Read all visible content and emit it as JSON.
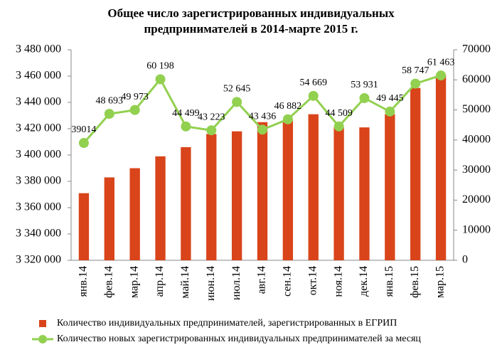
{
  "chart_data": {
    "type": "bar-line",
    "title": [
      "Общее число зарегистрированных индивидуальных",
      "предпринимателей в 2014-марте 2015 г."
    ],
    "categories": [
      "янв.14",
      "фев.14",
      "мар.14",
      "апр.14",
      "май.14",
      "июн.14",
      "июл.14",
      "авг.14",
      "сен.14",
      "окт.14",
      "ноя.14",
      "дек.14",
      "янв.15",
      "фев.15",
      "мар.15"
    ],
    "series": [
      {
        "name": "Количество индивидуальных предпринимателей, зарегистрированных в ЕГРИП",
        "type": "bar",
        "color": "#d9441a",
        "values": [
          3371000,
          3383000,
          3390000,
          3399000,
          3406000,
          3416000,
          3418000,
          3425000,
          3426000,
          3431000,
          3421000,
          3421000,
          3431000,
          3451000,
          3461000
        ]
      },
      {
        "name": "Количество новых зарегистрированных индивидуальных предпринимателей за месяц",
        "type": "line",
        "axis": "y2",
        "color": "#92d050",
        "values": [
          39014,
          48693,
          49973,
          60198,
          44499,
          43223,
          52645,
          43436,
          46882,
          54669,
          44509,
          53931,
          49445,
          58747,
          61463
        ],
        "value_labels": [
          "39014",
          "48 693",
          "49 973",
          "60 198",
          "44 499",
          "43 223",
          "52 645",
          "43 436",
          "46 882",
          "54 669",
          "44 509",
          "53 931",
          "49 445",
          "58 747",
          "61 463"
        ]
      }
    ],
    "ylim": [
      3320000,
      3480000
    ],
    "yticks": [
      {
        "value": 3320000,
        "label": "3 320 000"
      },
      {
        "value": 3340000,
        "label": "3 340 000"
      },
      {
        "value": 3360000,
        "label": "3 360 000"
      },
      {
        "value": 3380000,
        "label": "3 380 000"
      },
      {
        "value": 3400000,
        "label": "3 400 000"
      },
      {
        "value": 3420000,
        "label": "3 420 000"
      },
      {
        "value": 3440000,
        "label": "3 440 000"
      },
      {
        "value": 3460000,
        "label": "3 460 000"
      },
      {
        "value": 3480000,
        "label": "3 480 000"
      }
    ],
    "y2lim": [
      0,
      70000
    ],
    "y2ticks": [
      0,
      10000,
      20000,
      30000,
      40000,
      50000,
      60000,
      70000
    ],
    "legend": "bottom"
  }
}
